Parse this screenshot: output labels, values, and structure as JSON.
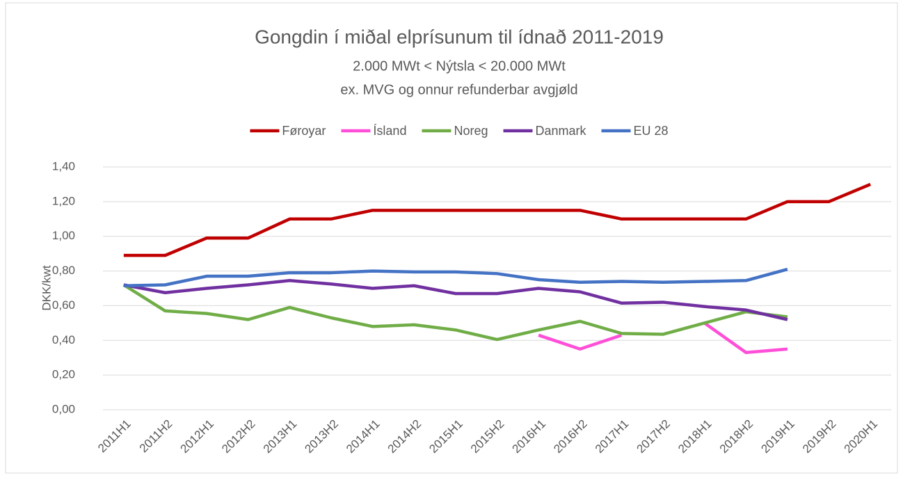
{
  "chart_data": {
    "type": "line",
    "title": "Gongdin í miðal elprísunum til ídnað 2011-2019",
    "subtitle": [
      "2.000 MWt < Nýtsla < 20.000 MWt",
      "ex. MVG og onnur refunderbar avgjøld"
    ],
    "y_label": "DKK/kwt",
    "categories": [
      "2011H1",
      "2011H2",
      "2012H1",
      "2012H2",
      "2013H1",
      "2013H2",
      "2014H1",
      "2014H2",
      "2015H1",
      "2015H2",
      "2016H1",
      "2016H2",
      "2017H1",
      "2017H2",
      "2018H1",
      "2018H2",
      "2019H1",
      "2019H2",
      "2020H1"
    ],
    "series": [
      {
        "name": "Føroyar",
        "color": "#c00000",
        "values": [
          0.89,
          0.89,
          0.99,
          0.99,
          1.1,
          1.1,
          1.15,
          1.15,
          1.15,
          1.15,
          1.15,
          1.15,
          1.1,
          1.1,
          1.1,
          1.1,
          1.2,
          1.2,
          1.3
        ]
      },
      {
        "name": "Ísland",
        "color": "#ff4fd8",
        "values": [
          null,
          null,
          null,
          null,
          null,
          null,
          null,
          null,
          null,
          null,
          0.43,
          0.35,
          0.43,
          null,
          0.5,
          0.33,
          0.35,
          null,
          null
        ]
      },
      {
        "name": "Noreg",
        "color": "#70ad47",
        "values": [
          0.72,
          0.57,
          0.555,
          0.52,
          0.59,
          0.53,
          0.48,
          0.49,
          0.46,
          0.405,
          0.46,
          0.51,
          0.44,
          0.435,
          0.5,
          0.565,
          0.535,
          null,
          null
        ]
      },
      {
        "name": "Danmark",
        "color": "#7030a0",
        "values": [
          0.72,
          0.675,
          0.7,
          0.72,
          0.745,
          0.725,
          0.7,
          0.715,
          0.67,
          0.67,
          0.7,
          0.68,
          0.615,
          0.62,
          0.595,
          0.575,
          0.52,
          null,
          null
        ]
      },
      {
        "name": "EU 28",
        "color": "#4472c4",
        "values": [
          0.715,
          0.72,
          0.77,
          0.77,
          0.79,
          0.79,
          0.8,
          0.795,
          0.795,
          0.785,
          0.75,
          0.735,
          0.74,
          0.735,
          0.74,
          0.745,
          0.81,
          null,
          null
        ]
      }
    ],
    "ylim": [
      0,
      1.4
    ],
    "yticks": [
      {
        "value": 0,
        "label": "0,00"
      },
      {
        "value": 0.2,
        "label": "0,20"
      },
      {
        "value": 0.4,
        "label": "0,40"
      },
      {
        "value": 0.6,
        "label": "0,60"
      },
      {
        "value": 0.8,
        "label": "0,80"
      },
      {
        "value": 1.0,
        "label": "1,00"
      },
      {
        "value": 1.2,
        "label": "1,20"
      },
      {
        "value": 1.4,
        "label": "1,40"
      }
    ],
    "grid": true,
    "legend": "top"
  }
}
